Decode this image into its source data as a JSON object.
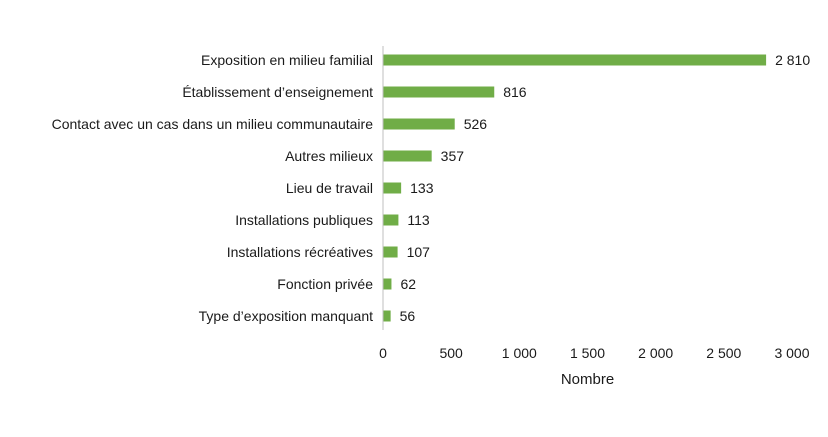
{
  "chart_data": {
    "type": "bar",
    "orientation": "horizontal",
    "title": "",
    "xlabel": "Nombre",
    "ylabel": "",
    "xlim": [
      0,
      3000
    ],
    "x_ticks": [
      0,
      500,
      1000,
      1500,
      2000,
      2500,
      3000
    ],
    "x_tick_labels": [
      "0",
      "500",
      "1 000",
      "1 500",
      "2 000",
      "2 500",
      "3 000"
    ],
    "grid": false,
    "legend": "none",
    "bar_color": "#70ad47",
    "categories": [
      "Exposition en milieu familial",
      "Établissement d’enseignement",
      "Contact avec un cas dans un milieu communautaire",
      "Autres milieux",
      "Lieu de travail",
      "Installations publiques",
      "Installations récréatives",
      "Fonction privée",
      "Type d’exposition manquant"
    ],
    "values": [
      2810,
      816,
      526,
      357,
      133,
      113,
      107,
      62,
      56
    ],
    "value_labels": [
      "2 810",
      "816",
      "526",
      "357",
      "133",
      "113",
      "107",
      "62",
      "56"
    ]
  }
}
